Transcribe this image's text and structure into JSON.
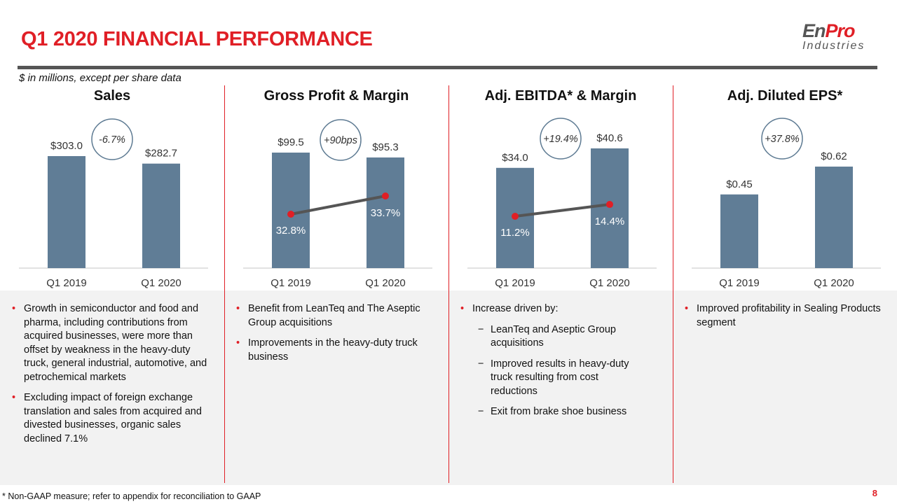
{
  "header": {
    "title": "Q1 2020 FINANCIAL PERFORMANCE",
    "subtitle": "$ in millions, except per share data",
    "logo_text": "EnPro Industries"
  },
  "colors": {
    "accent": "#e01f26",
    "bar": "#607d96",
    "line": "#555555",
    "marker": "#e01f26"
  },
  "chart_data": [
    {
      "type": "bar",
      "title": "Sales",
      "categories": [
        "Q1 2019",
        "Q1 2020"
      ],
      "values": [
        303.0,
        282.7
      ],
      "labels": [
        "$303.0",
        "$282.7"
      ],
      "change": "-6.7%"
    },
    {
      "type": "bar",
      "title": "Gross Profit & Margin",
      "categories": [
        "Q1 2019",
        "Q1 2020"
      ],
      "values": [
        99.5,
        95.3
      ],
      "labels": [
        "$99.5",
        "$95.3"
      ],
      "line_values": [
        32.8,
        33.7
      ],
      "line_labels": [
        "32.8%",
        "33.7%"
      ],
      "change": "+90bps"
    },
    {
      "type": "bar",
      "title": "Adj. EBITDA* & Margin",
      "categories": [
        "Q1 2019",
        "Q1 2020"
      ],
      "values": [
        34.0,
        40.6
      ],
      "labels": [
        "$34.0",
        "$40.6"
      ],
      "line_values": [
        11.2,
        14.4
      ],
      "line_labels": [
        "11.2%",
        "14.4%"
      ],
      "change": "+19.4%"
    },
    {
      "type": "bar",
      "title": "Adj. Diluted EPS*",
      "categories": [
        "Q1 2019",
        "Q1 2020"
      ],
      "values": [
        0.45,
        0.62
      ],
      "labels": [
        "$0.45",
        "$0.62"
      ],
      "change": "+37.8%"
    }
  ],
  "bullets": [
    [
      {
        "t": "b",
        "text": "Growth in semiconductor and food and pharma, including contributions from acquired businesses, were more than offset by weakness in the heavy-duty truck, general industrial, automotive, and petrochemical markets"
      },
      {
        "t": "b",
        "text": "Excluding impact of foreign exchange translation and sales from acquired and divested businesses, organic sales declined 7.1%"
      }
    ],
    [
      {
        "t": "b",
        "text": "Benefit from LeanTeq and The Aseptic Group acquisitions"
      },
      {
        "t": "b",
        "text": "Improvements in the heavy-duty truck business"
      }
    ],
    [
      {
        "t": "b",
        "text": "Increase driven by:"
      },
      {
        "t": "s",
        "text": "LeanTeq and Aseptic Group acquisitions"
      },
      {
        "t": "s",
        "text": "Improved results in heavy-duty truck resulting from cost reductions"
      },
      {
        "t": "s",
        "text": "Exit from brake shoe business"
      }
    ],
    [
      {
        "t": "b",
        "text": "Improved profitability in Sealing Products segment"
      }
    ]
  ],
  "footer": {
    "note": "* Non-GAAP measure; refer to appendix for reconciliation to GAAP",
    "page": "8"
  }
}
